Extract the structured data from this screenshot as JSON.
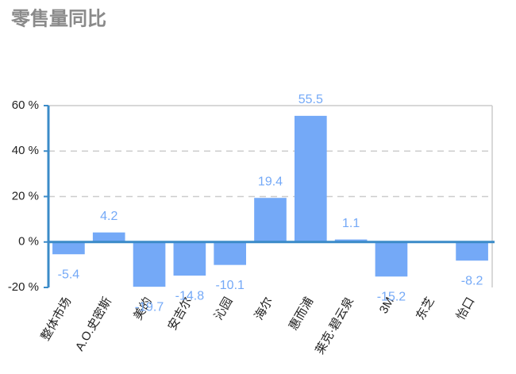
{
  "chart_data": {
    "type": "bar",
    "title": "零售量同比",
    "categories": [
      "整体市场",
      "A.O.史密斯",
      "美的",
      "安吉尔",
      "沁园",
      "海尔",
      "惠而浦",
      "莱克·碧云泉",
      "3M",
      "东芝",
      "怡口"
    ],
    "values": [
      -5.4,
      4.2,
      -19.7,
      -14.8,
      -10.1,
      19.4,
      55.5,
      1.1,
      -15.2,
      null,
      -8.2
    ],
    "color": "#74a9f7",
    "ylim": [
      -20,
      60
    ],
    "yticks": [
      {
        "value": -20,
        "label": "-20 %"
      },
      {
        "value": 0,
        "label": "0 %"
      },
      {
        "value": 20,
        "label": "20 %"
      },
      {
        "value": 40,
        "label": "40 %"
      },
      {
        "value": 60,
        "label": "60 %"
      }
    ],
    "grid": true
  }
}
